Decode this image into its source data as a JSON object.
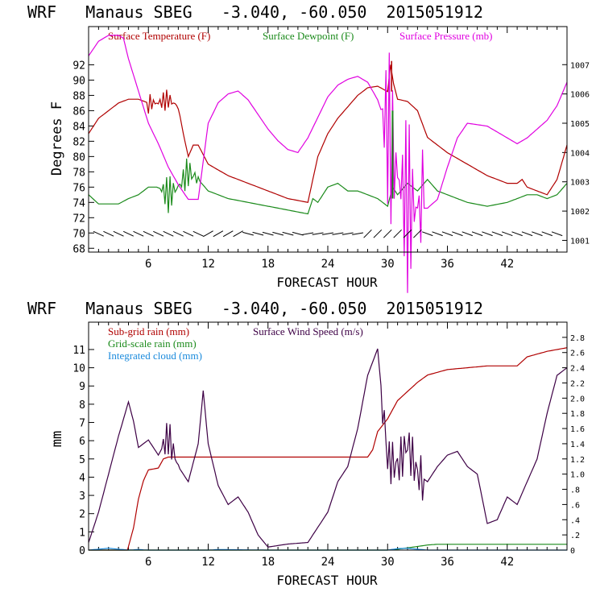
{
  "chart_data": [
    {
      "type": "line",
      "title": "WRF   Manaus SBEG   -3.040, -60.050  2015051912",
      "xlabel": "FORECAST HOUR",
      "ylabel": "Degrees F",
      "xlim": [
        0,
        48
      ],
      "xticks": [
        6,
        12,
        18,
        24,
        30,
        36,
        42
      ],
      "ylim": [
        67.5,
        97
      ],
      "yticks": [
        68,
        70,
        72,
        74,
        76,
        78,
        80,
        82,
        84,
        86,
        88,
        90,
        92
      ],
      "y2lim": [
        1000.6,
        1008.3
      ],
      "y2ticks": [
        1001,
        1002,
        1003,
        1004,
        1005,
        1006,
        1007
      ],
      "legend": [
        "Surface Temperature (F)",
        "Surface Dewpoint (F)",
        "Surface Pressure (mb)"
      ],
      "colors": {
        "temperature": "#b00000",
        "dewpoint": "#1a8a1a",
        "pressure": "#e000e0",
        "barbs": "#000000"
      },
      "series": [
        {
          "name": "Surface Temperature (F)",
          "axis": "left",
          "x": [
            0,
            1,
            2,
            3,
            4,
            5,
            6,
            7,
            8,
            9,
            9.5,
            10,
            10.5,
            11,
            12,
            14,
            16,
            18,
            20,
            22,
            22.5,
            23,
            24,
            25,
            26,
            27,
            28,
            29,
            30,
            30.3,
            30.6,
            31,
            32,
            33,
            34,
            36,
            38,
            40,
            42,
            43,
            43.5,
            44,
            45,
            46,
            47,
            48
          ],
          "y": [
            83,
            85,
            86,
            87,
            87.5,
            87.5,
            87,
            87,
            87.5,
            86.5,
            83,
            80,
            81.5,
            81.5,
            79,
            77.5,
            76.5,
            75.5,
            74.5,
            74,
            77,
            80,
            83,
            85,
            86.5,
            88,
            89,
            89.2,
            88.5,
            92,
            89.5,
            87.5,
            87.2,
            86,
            82.5,
            80.5,
            79,
            77.5,
            76.5,
            76.5,
            77,
            76,
            75.5,
            75,
            77,
            81.5
          ]
        },
        {
          "name": "Surface Dewpoint (F)",
          "axis": "left",
          "x": [
            0,
            1,
            2,
            3,
            4,
            5,
            6,
            7,
            8,
            9,
            10,
            11,
            12,
            14,
            16,
            18,
            20,
            22,
            22.5,
            23,
            24,
            25,
            26,
            27,
            28,
            29,
            30,
            30.5,
            31,
            32,
            33,
            34,
            35,
            36,
            38,
            40,
            42,
            43,
            44,
            45,
            46,
            47,
            48
          ],
          "y": [
            75,
            73.8,
            73.8,
            73.8,
            74.5,
            75,
            76,
            76,
            75,
            76,
            78,
            77,
            75.5,
            74.5,
            74,
            73.5,
            73,
            72.5,
            74.5,
            74,
            76,
            76.5,
            75.5,
            75.5,
            75,
            74.5,
            73.5,
            76,
            75,
            76.5,
            75.5,
            77,
            75.5,
            75,
            74,
            73.5,
            74,
            74.5,
            75,
            75,
            74.5,
            75,
            76.5
          ]
        },
        {
          "name": "Surface Pressure (mb)",
          "axis": "right",
          "x": [
            0,
            1,
            2,
            3,
            3.5,
            4,
            5,
            6,
            7,
            8,
            9,
            10,
            11,
            12,
            13,
            14,
            15,
            16,
            17,
            18,
            19,
            20,
            21,
            22,
            23,
            24,
            25,
            26,
            27,
            28,
            29,
            30,
            31,
            32,
            33,
            34,
            35,
            36,
            37,
            38,
            40,
            42,
            43,
            44,
            45,
            46,
            47,
            48
          ],
          "y": [
            1007.3,
            1007.8,
            1008,
            1008,
            1007.9,
            1007.2,
            1006.1,
            1005,
            1004.3,
            1003.5,
            1002.9,
            1002.4,
            1002.4,
            1005,
            1005.7,
            1006,
            1006.1,
            1005.8,
            1005.3,
            1004.8,
            1004.4,
            1004.1,
            1004,
            1004.5,
            1005.2,
            1005.9,
            1006.3,
            1006.5,
            1006.6,
            1006.4,
            1005.8,
            1004.8,
            1003.2,
            1002.2,
            1002.1,
            1002.1,
            1002.4,
            1003.5,
            1004.5,
            1005,
            1004.9,
            1004.5,
            1004.3,
            1004.5,
            1004.8,
            1005.1,
            1005.6,
            1006.4
          ]
        }
      ]
    },
    {
      "type": "line",
      "title": "WRF   Manaus SBEG   -3.040, -60.050  2015051912",
      "xlabel": "FORECAST HOUR",
      "ylabel": "mm",
      "xlim": [
        0,
        48
      ],
      "xticks": [
        6,
        12,
        18,
        24,
        30,
        36,
        42
      ],
      "ylim": [
        0,
        12.5
      ],
      "yticks": [
        0,
        1,
        2,
        3,
        4,
        5,
        6,
        7,
        8,
        9,
        10,
        11
      ],
      "y2lim": [
        0,
        3.0
      ],
      "y2ticks": [
        0,
        0.2,
        0.4,
        0.6,
        0.8,
        1.0,
        1.2,
        1.4,
        1.6,
        1.8,
        2.0,
        2.2,
        2.4,
        2.6,
        2.8
      ],
      "y2ticklabels": [
        "0",
        ".2",
        ".4",
        ".6",
        ".8",
        "1.0",
        "1.2",
        "1.4",
        "1.6",
        "1.8",
        "2.0",
        "2.2",
        "2.4",
        "2.6",
        "2.8"
      ],
      "legend": [
        "Sub-grid rain (mm)",
        "Surface Wind Speed (m/s)",
        "Grid-scale rain (mm)",
        "Integrated cloud (mm)"
      ],
      "colors": {
        "subgrid": "#b00000",
        "wind": "#3d0045",
        "gridscale": "#1a8a1a",
        "cloud": "#1a8adc"
      },
      "series": [
        {
          "name": "Sub-grid rain (mm)",
          "axis": "left",
          "x": [
            0,
            3.9,
            4,
            4.5,
            5,
            5.5,
            6,
            7,
            7.5,
            8,
            10,
            12,
            20,
            28,
            28.5,
            29,
            30,
            31,
            32,
            33,
            34,
            36,
            38,
            40,
            43,
            44,
            46,
            48
          ],
          "y": [
            0,
            0,
            0.2,
            1.2,
            2.8,
            3.8,
            4.4,
            4.5,
            5.0,
            5.1,
            5.1,
            5.1,
            5.1,
            5.1,
            5.5,
            6.5,
            7.2,
            8.2,
            8.7,
            9.2,
            9.6,
            9.9,
            10.0,
            10.1,
            10.1,
            10.6,
            10.9,
            11.1
          ]
        },
        {
          "name": "Surface Wind Speed (m/s)",
          "axis": "right",
          "x": [
            0,
            1,
            2,
            3,
            4,
            4.5,
            5,
            6,
            7,
            8,
            9,
            10,
            11,
            11.5,
            12,
            13,
            14,
            15,
            16,
            17,
            18,
            20,
            22,
            23,
            24,
            25,
            26,
            27,
            28,
            29,
            30,
            31,
            32,
            33,
            34,
            35,
            36,
            37,
            38,
            39,
            40,
            41,
            42,
            43,
            44,
            45,
            46,
            47,
            48
          ],
          "y": [
            0.1,
            0.5,
            1.0,
            1.5,
            1.95,
            1.7,
            1.35,
            1.45,
            1.25,
            1.5,
            1.1,
            0.9,
            1.4,
            2.1,
            1.4,
            0.85,
            0.6,
            0.7,
            0.5,
            0.2,
            0.04,
            0.08,
            0.1,
            0.3,
            0.5,
            0.9,
            1.1,
            1.6,
            2.3,
            2.65,
            1.2,
            1.1,
            1.4,
            1.0,
            0.9,
            1.1,
            1.25,
            1.3,
            1.1,
            1.0,
            0.35,
            0.4,
            0.7,
            0.6,
            0.9,
            1.2,
            1.8,
            2.3,
            2.4
          ]
        },
        {
          "name": "Grid-scale rain (mm)",
          "axis": "left",
          "x": [
            0,
            30,
            31,
            32,
            33,
            34,
            35,
            48
          ],
          "y": [
            0,
            0,
            0.05,
            0.12,
            0.2,
            0.28,
            0.32,
            0.32
          ]
        },
        {
          "name": "Integrated cloud (mm)",
          "axis": "left",
          "x": [
            0,
            1,
            2,
            3,
            4,
            5,
            6,
            7,
            12,
            13,
            18,
            24,
            30,
            31,
            32,
            33,
            34,
            48
          ],
          "y": [
            0,
            0.05,
            0.1,
            0.05,
            0,
            0.03,
            0,
            0,
            0,
            0.03,
            0,
            0,
            0,
            0.08,
            0.1,
            0.05,
            0,
            0
          ]
        }
      ]
    }
  ]
}
